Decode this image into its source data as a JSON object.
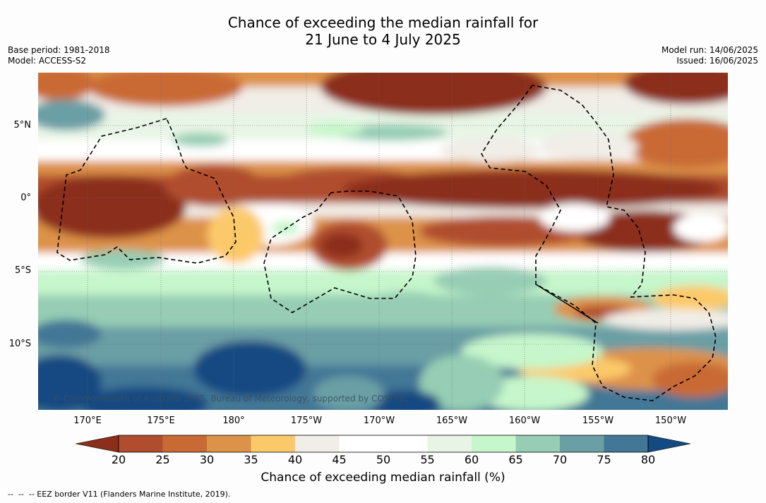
{
  "title_line1": "Chance of exceeding the median rainfall for",
  "title_line2": "21 June to 4 July 2025",
  "base_period": "Base period: 1981-2018",
  "model": "Model: ACCESS-S2",
  "model_run": "Model run: 14/06/2025",
  "issued": "Issued: 16/06/2025",
  "copyright": "© Commonwealth of Australia 2025, Bureau of Meteorology, supported by COSPPac",
  "lat_labels": [
    "5°N",
    "0°",
    "5°S",
    "10°S"
  ],
  "lon_labels": [
    "170°E",
    "175°E",
    "180°",
    "175°W",
    "170°W",
    "165°W",
    "160°W",
    "155°W",
    "150°W"
  ],
  "colorbar": {
    "ticks": [
      "20",
      "25",
      "30",
      "35",
      "40",
      "45",
      "50",
      "55",
      "60",
      "65",
      "70",
      "75",
      "80"
    ],
    "label": "Chance of exceeding median rainfall (%)",
    "colors": [
      "#8c2e1c",
      "#b04d2e",
      "#c96a35",
      "#dd924a",
      "#fcc96a",
      "#f1ede7",
      "#ffffff",
      "#ffffff",
      "#e8f5e6",
      "#c6f6cb",
      "#96cdb4",
      "#6a9fa5",
      "#427796",
      "#134a82"
    ]
  },
  "footnote": "--  --  -- EEZ border V11 (Flanders Marine Institute, 2019)."
}
